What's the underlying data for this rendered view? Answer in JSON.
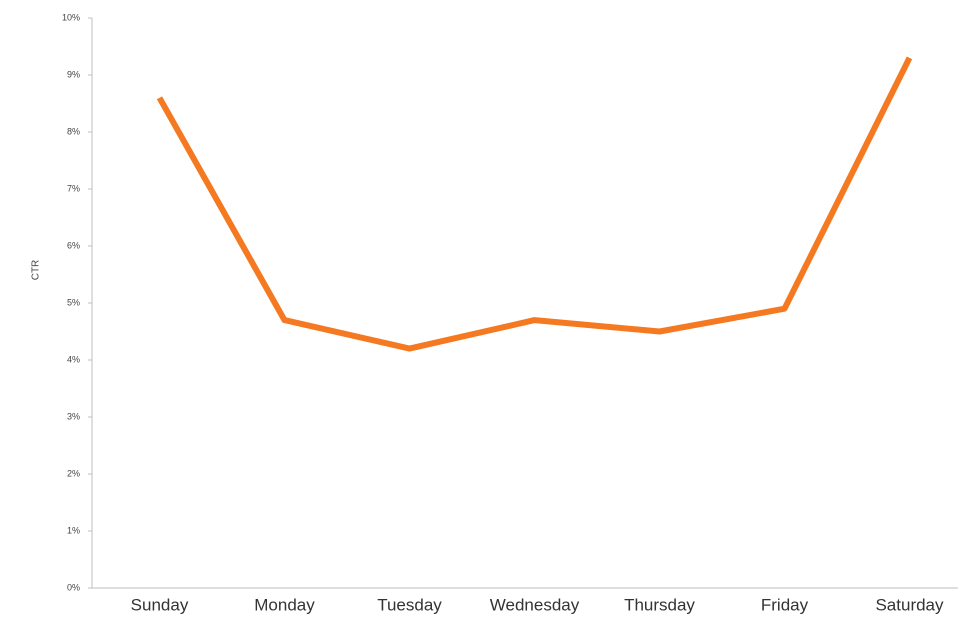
{
  "chart_data": {
    "type": "line",
    "ylabel": "CTR",
    "categories": [
      "Sunday",
      "Monday",
      "Tuesday",
      "Wednesday",
      "Thursday",
      "Friday",
      "Saturday"
    ],
    "values": [
      8.6,
      4.7,
      4.2,
      4.7,
      4.5,
      4.9,
      9.3
    ],
    "color": "#f47920",
    "ylim": [
      0,
      10
    ],
    "yticks": [
      {
        "value": 0,
        "label": "0%"
      },
      {
        "value": 1,
        "label": "1%"
      },
      {
        "value": 2,
        "label": "2%"
      },
      {
        "value": 3,
        "label": "3%"
      },
      {
        "value": 4,
        "label": "4%"
      },
      {
        "value": 5,
        "label": "5%"
      },
      {
        "value": 6,
        "label": "6%"
      },
      {
        "value": 7,
        "label": "7%"
      },
      {
        "value": 8,
        "label": "8%"
      },
      {
        "value": 9,
        "label": "9%"
      },
      {
        "value": 10,
        "label": "10%"
      }
    ],
    "grid": false
  }
}
